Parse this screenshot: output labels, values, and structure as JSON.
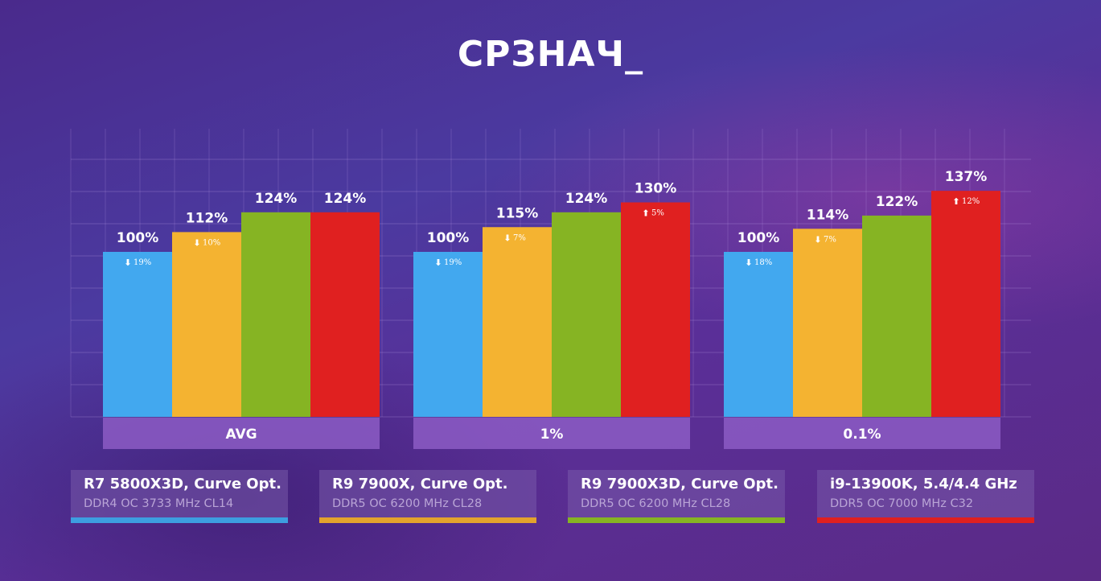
{
  "page": {
    "title": "СРЗНАЧ_"
  },
  "colors": {
    "blue": "#42a8ef",
    "yellow": "#f4b331",
    "green": "#86b423",
    "red": "#e02020",
    "group_band": "#8c5cc4",
    "group_text": "#ffffff"
  },
  "legend": [
    {
      "name": "R7 5800X3D, Curve Opt.",
      "sub": "DDR4 OC 3733 MHz CL14",
      "color": "#3d9ee0"
    },
    {
      "name": "R9 7900X, Curve Opt.",
      "sub": "DDR5 OC 6200 MHz CL28",
      "color": "#e3a32d"
    },
    {
      "name": "R9 7900X3D, Curve Opt.",
      "sub": "DDR5 OC 6200 MHz CL28",
      "color": "#86b423"
    },
    {
      "name": "i9-13900K, 5.4/4.4 GHz",
      "sub": "DDR5 OC 7000 MHz C32",
      "color": "#e02020"
    }
  ],
  "chart_data": {
    "type": "bar",
    "title": "СРЗНАЧ_",
    "categories": [
      "AVG",
      "1%",
      "0.1%"
    ],
    "ylim": [
      0,
      150
    ],
    "grid": true,
    "series": [
      {
        "name": "R7 5800X3D, Curve Opt. DDR4 OC 3733 MHz CL14",
        "values": [
          100,
          100,
          100
        ],
        "labels": [
          "100%",
          "100%",
          "100%"
        ],
        "deltas": [
          {
            "dir": "down",
            "text": "19%"
          },
          {
            "dir": "down",
            "text": "19%"
          },
          {
            "dir": "down",
            "text": "18%"
          }
        ]
      },
      {
        "name": "R9 7900X, Curve Opt. DDR5 OC 6200 MHz CL28",
        "values": [
          112,
          115,
          114
        ],
        "labels": [
          "112%",
          "115%",
          "114%"
        ],
        "deltas": [
          {
            "dir": "down",
            "text": "10%"
          },
          {
            "dir": "down",
            "text": "7%"
          },
          {
            "dir": "down",
            "text": "7%"
          }
        ]
      },
      {
        "name": "R9 7900X3D, Curve Opt. DDR5 OC 6200 MHz CL28",
        "values": [
          124,
          124,
          122
        ],
        "labels": [
          "124%",
          "124%",
          "122%"
        ],
        "deltas": [
          null,
          null,
          null
        ]
      },
      {
        "name": "i9-13900K, 5.4/4.4 GHz DDR5 OC 7000 MHz C32",
        "values": [
          124,
          130,
          137
        ],
        "labels": [
          "124%",
          "130%",
          "137%"
        ],
        "deltas": [
          null,
          {
            "dir": "up",
            "text": "5%"
          },
          {
            "dir": "up",
            "text": "12%"
          }
        ]
      }
    ]
  }
}
